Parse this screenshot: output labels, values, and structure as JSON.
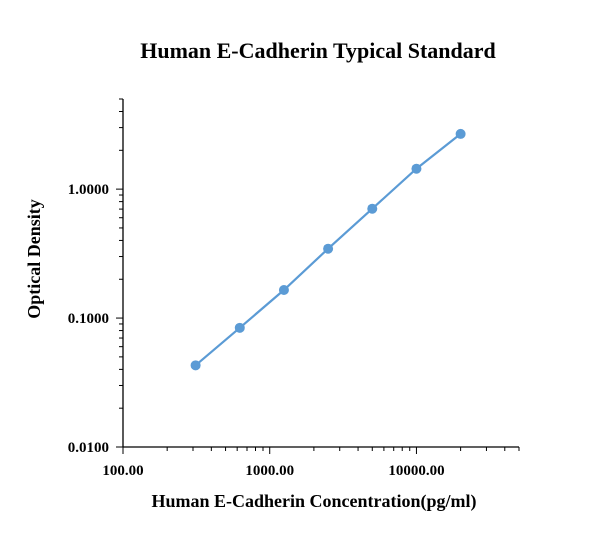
{
  "chart_data": {
    "type": "scatter",
    "title": "Human E-Cadherin Typical Standard",
    "xlabel": "Human E-Cadherin  Concentration(pg/ml)",
    "ylabel": "Optical Density",
    "xscale": "log",
    "yscale": "log",
    "xlim": [
      100,
      50000
    ],
    "ylim": [
      0.01,
      5
    ],
    "xticks": [
      100,
      1000,
      10000
    ],
    "xtick_labels": [
      "100.00",
      "1000.00",
      "10000.00"
    ],
    "yticks": [
      0.01,
      0.1,
      1
    ],
    "ytick_labels": [
      "0.0100",
      "0.1000",
      "1.0000"
    ],
    "grid": false,
    "series": [
      {
        "color": "#5b9bd5",
        "mode": "lines+markers",
        "x": [
          312.5,
          625,
          1250,
          2500,
          5000,
          10000,
          20000
        ],
        "y": [
          0.043,
          0.084,
          0.165,
          0.345,
          0.705,
          1.44,
          2.68
        ]
      }
    ]
  }
}
